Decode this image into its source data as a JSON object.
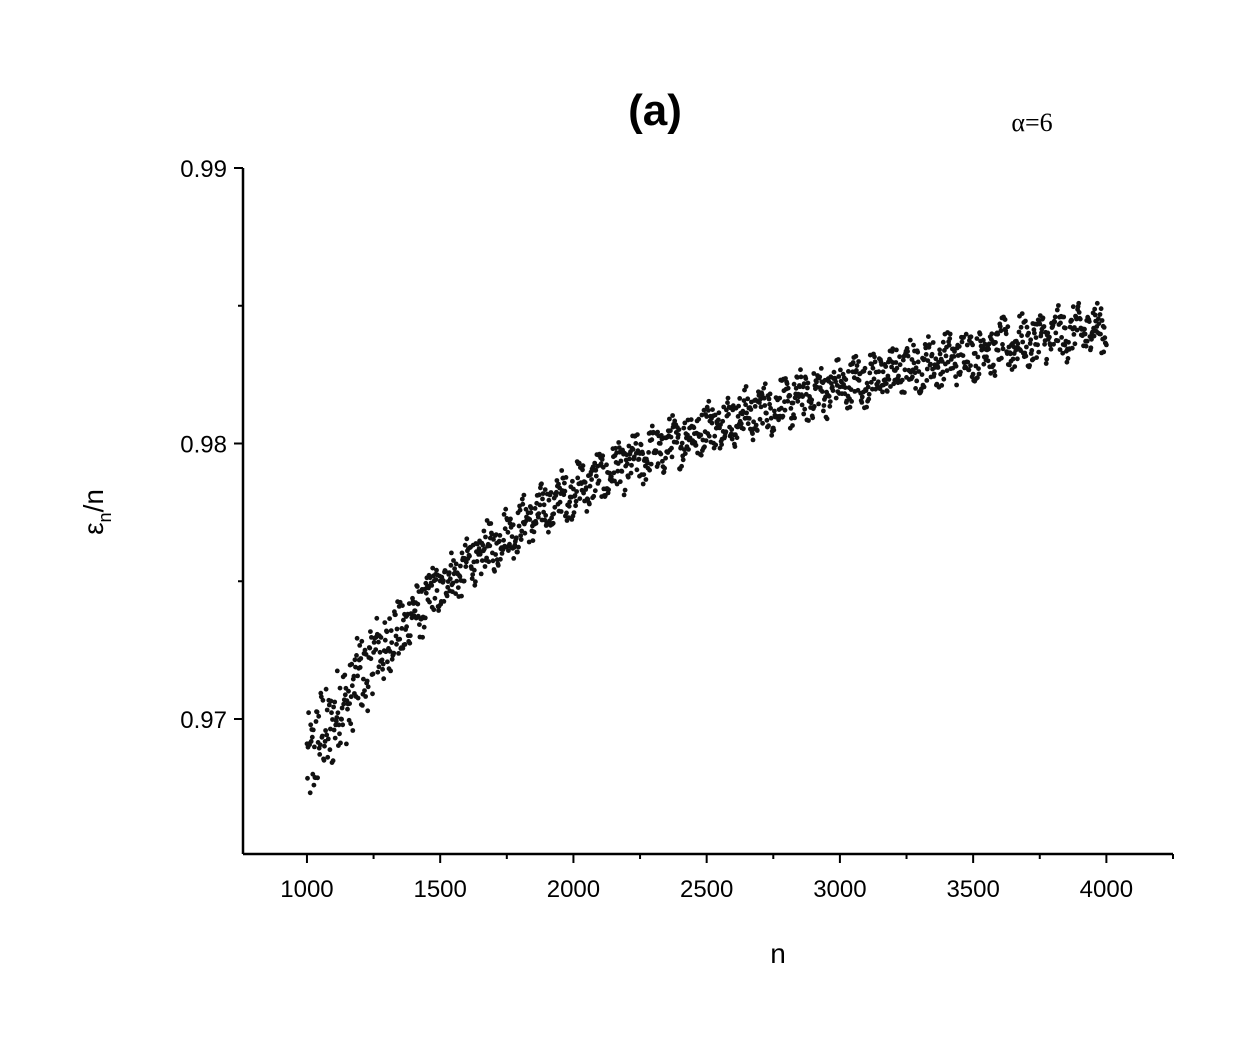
{
  "chart_data": {
    "type": "scatter",
    "title": "(a)",
    "annotation": "α=6",
    "xlabel": "n",
    "ylabel": {
      "main": "ε",
      "subscript": "n",
      "suffix": "/n"
    },
    "xlim": [
      760,
      4250
    ],
    "ylim": [
      0.9651,
      0.99
    ],
    "x_ticks": [
      1000,
      1500,
      2000,
      2500,
      3000,
      3500,
      4000
    ],
    "x_tick_labels": [
      "1000",
      "1500",
      "2000",
      "2500",
      "3000",
      "3500",
      "4000"
    ],
    "y_ticks": [
      0.97,
      0.98,
      0.99
    ],
    "y_tick_labels": [
      "0.97",
      "0.98",
      "0.99"
    ],
    "grid": false,
    "legend": "none",
    "series": [
      {
        "x_range": [
          1000,
          4000
        ],
        "trend": [
          {
            "x": 1000,
            "y": 0.9685
          },
          {
            "x": 1250,
            "y": 0.9722
          },
          {
            "x": 1500,
            "y": 0.9748
          },
          {
            "x": 1750,
            "y": 0.9767
          },
          {
            "x": 2000,
            "y": 0.9783
          },
          {
            "x": 2500,
            "y": 0.9806
          },
          {
            "x": 3000,
            "y": 0.9821
          },
          {
            "x": 3500,
            "y": 0.9833
          },
          {
            "x": 4000,
            "y": 0.9843
          }
        ],
        "spread": 0.0008,
        "color": "#111111"
      }
    ]
  }
}
